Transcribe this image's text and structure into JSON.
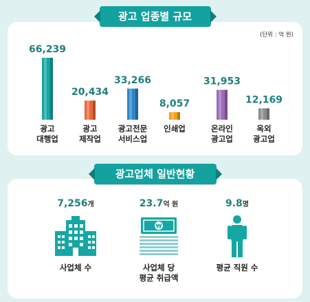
{
  "section1": {
    "title": "광고 업종별 규모",
    "unit": "(단위 : 억 원)"
  },
  "chart_data": {
    "type": "bar",
    "categories": [
      [
        "광고",
        "대행업"
      ],
      [
        "광고",
        "제작업"
      ],
      [
        "광고전문",
        "서비스업"
      ],
      [
        "인쇄업"
      ],
      [
        "온라인",
        "광고업"
      ],
      [
        "옥외",
        "광고업"
      ]
    ],
    "values": [
      66239,
      20434,
      33266,
      8057,
      31953,
      12169
    ],
    "value_labels": [
      "66,239",
      "20,434",
      "33,266",
      "8,057",
      "31,953",
      "12,169"
    ],
    "colors": [
      "#14a7a3",
      "#e8683a",
      "#2f86c6",
      "#f0a21a",
      "#9b6bb5",
      "#8c8c8c"
    ],
    "title": "광고 업종별 규모",
    "unit": "(단위 : 억 원)"
  },
  "section2": {
    "title": "광고업체 일반현황",
    "stats": [
      {
        "value": "7,256",
        "unit": "개",
        "label": [
          "사업체 수"
        ],
        "icon": "building-icon"
      },
      {
        "value": "23.7",
        "unit": "억 원",
        "label": [
          "사업체 당",
          "평균 취급액"
        ],
        "icon": "money-stack-icon"
      },
      {
        "value": "9.8",
        "unit": "명",
        "label": [
          "평균 직원 수"
        ],
        "icon": "person-icon"
      }
    ]
  },
  "colors": {
    "accent": "#13a29f",
    "background": "#dff1f1",
    "value_text": "#1f7f7d"
  }
}
